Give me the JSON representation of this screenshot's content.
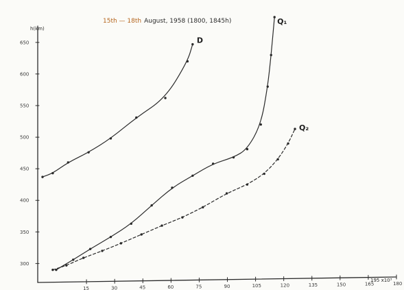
{
  "title": "15th — 18th August, 1958 (1800, 1845h)",
  "title_dates": "15th — 18th",
  "title_rest": "August, 1958 (1800, 1845h)",
  "chart_data": {
    "type": "line",
    "title": "15th — 18th August, 1958 (1800, 1845h)",
    "xlabel": "x10³",
    "ylabel": "h(km)",
    "xlim": [
      0,
      180
    ],
    "ylim": [
      270,
      690
    ],
    "x_ticks": [
      15,
      30,
      45,
      60,
      75,
      90,
      105,
      120,
      135,
      150,
      165,
      180
    ],
    "x_tick_labels": [
      "15",
      "30",
      "45",
      "60",
      "75",
      "90",
      "105",
      "120",
      "135",
      "150",
      "165",
      "180"
    ],
    "x_end_label": "195 x10³",
    "y_ticks": [
      300,
      350,
      400,
      450,
      500,
      550,
      600,
      650
    ],
    "y_tick_labels": [
      "300",
      "350",
      "400",
      "450",
      "500",
      "550",
      "600",
      "650"
    ],
    "grid": false,
    "legend": "none",
    "series": [
      {
        "name": "D",
        "style": "solid",
        "x": [
          0,
          6,
          15,
          27,
          40,
          55,
          72,
          85,
          88
        ],
        "y": [
          437,
          443,
          460,
          476,
          498,
          531,
          562,
          620,
          647
        ]
      },
      {
        "name": "Q1",
        "style": "solid",
        "x": [
          8,
          18,
          28,
          40,
          52,
          64,
          76,
          88,
          100,
          112,
          120,
          128,
          132,
          134,
          136
        ],
        "y": [
          290,
          306,
          323,
          342,
          363,
          392,
          420,
          439,
          458,
          468,
          481,
          520,
          580,
          630,
          690
        ]
      },
      {
        "name": "Q2",
        "style": "dashed",
        "x": [
          6,
          14,
          24,
          35,
          46,
          58,
          70,
          82,
          94,
          108,
          120,
          130,
          138,
          144,
          148
        ],
        "y": [
          290,
          297,
          309,
          320,
          332,
          346,
          360,
          373,
          389,
          411,
          425,
          442,
          465,
          490,
          513
        ]
      }
    ]
  }
}
